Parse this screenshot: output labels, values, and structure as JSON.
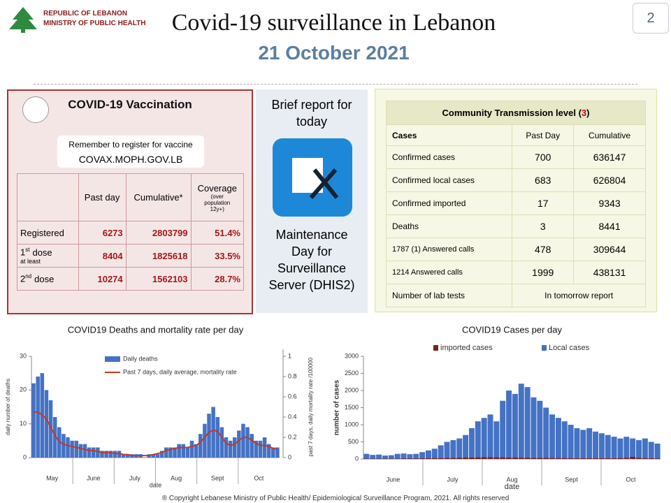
{
  "header": {
    "org_line1": "REPUBLIC OF LEBANON",
    "org_line2": "MINISTRY OF PUBLIC HEALTH",
    "title": "Covid-19 surveillance in Lebanon",
    "date": "21 October 2021",
    "page": "2"
  },
  "vaccination": {
    "title": "COVID-19 Vaccination",
    "reminder": "Remember to register for vaccine",
    "website": "COVAX.MOPH.GOV.LB",
    "columns": [
      "Past day",
      "Cumulative*",
      "Coverage"
    ],
    "coverage_note": "(over population 12y+)",
    "rows": [
      {
        "label": "Registered",
        "values": [
          "6273",
          "2803799",
          "51.4%"
        ]
      },
      {
        "label_num": "1",
        "label_sup": "st",
        "label": "dose",
        "note": "at least",
        "values": [
          "8404",
          "1825618",
          "33.5%"
        ]
      },
      {
        "label_num": "2",
        "label_sup": "nd",
        "label": "dose",
        "values": [
          "10274",
          "1562103",
          "28.7%"
        ]
      }
    ]
  },
  "brief": {
    "heading": "Brief report for today",
    "message": "Maintenance Day for Surveillance Server (DHIS2)"
  },
  "transmission": {
    "title": "Community Transmission level (",
    "level": "3",
    "title_end": ")",
    "columns": [
      "Cases",
      "Past Day",
      "Cumulative"
    ],
    "rows": [
      [
        "Confirmed cases",
        "700",
        "636147"
      ],
      [
        "Confirmed local cases",
        "683",
        "626804"
      ],
      [
        "Confirmed imported",
        "17",
        "9343"
      ],
      [
        "Deaths",
        "3",
        "8441"
      ],
      [
        "1787 (1) Answered calls",
        "478",
        "309644"
      ],
      [
        "1214 Answered calls",
        "1999",
        "438131"
      ]
    ],
    "lab_tests": [
      "Number of lab tests",
      "In tomorrow report"
    ]
  },
  "footer": "® Copyright Lebanese Ministry of Public Health/ Epidemiological Surveillance Program, 2021. All rights reserved",
  "chart_data": [
    {
      "type": "combo",
      "title": "COVID19 Deaths and mortality rate per day",
      "xlabel": "date",
      "ylabel": "daily number of deaths",
      "y2label": "past 7 days, daily mortality rate /100000",
      "months": [
        "May",
        "June",
        "July",
        "Aug",
        "Sept",
        "Oct"
      ],
      "ylim": [
        0,
        30
      ],
      "yticks": [
        0,
        10,
        20,
        30
      ],
      "y2lim": [
        0,
        1
      ],
      "y2ticks": [
        0,
        0.2,
        0.4,
        0.6,
        0.8,
        1
      ],
      "series": [
        {
          "name": "Daily deaths",
          "color": "#4472c4",
          "values": [
            22,
            24,
            25,
            20,
            17,
            12,
            9,
            7,
            6,
            5,
            5,
            4,
            4,
            3,
            3,
            3,
            2,
            2,
            2,
            2,
            2,
            1,
            1,
            1,
            1,
            1,
            0,
            1,
            1,
            1,
            2,
            3,
            3,
            3,
            4,
            4,
            3,
            5,
            4,
            7,
            10,
            13,
            15,
            12,
            9,
            6,
            5,
            6,
            8,
            10,
            9,
            7,
            5,
            5,
            6,
            4,
            3,
            3
          ]
        },
        {
          "name": "Past 7 days, daily average, mortality rate",
          "color": "#c0392b",
          "axis": "y2",
          "values": [
            0.45,
            0.45,
            0.42,
            0.38,
            0.3,
            0.22,
            0.16,
            0.13,
            0.12,
            0.11,
            0.1,
            0.09,
            0.08,
            0.07,
            0.07,
            0.06,
            0.05,
            0.05,
            0.05,
            0.04,
            0.04,
            0.03,
            0.03,
            0.02,
            0.02,
            0.02,
            0.02,
            0.02,
            0.03,
            0.04,
            0.05,
            0.07,
            0.08,
            0.09,
            0.1,
            0.1,
            0.1,
            0.11,
            0.12,
            0.15,
            0.2,
            0.25,
            0.27,
            0.26,
            0.2,
            0.14,
            0.12,
            0.13,
            0.17,
            0.2,
            0.2,
            0.17,
            0.14,
            0.12,
            0.12,
            0.11,
            0.09,
            0.08
          ]
        }
      ]
    },
    {
      "type": "bar",
      "title": "COVID19 Cases per day",
      "xlabel": "date",
      "ylabel": "number of cases",
      "months": [
        "June",
        "July",
        "Aug",
        "Sept",
        "Oct"
      ],
      "ylim": [
        0,
        3000
      ],
      "yticks": [
        0,
        500,
        1000,
        1500,
        2000,
        2500,
        3000
      ],
      "series": [
        {
          "name": "imported cases",
          "color": "#7b1f1f",
          "values": [
            10,
            10,
            10,
            10,
            10,
            10,
            15,
            15,
            15,
            20,
            20,
            25,
            25,
            30,
            30,
            35,
            40,
            40,
            45,
            50,
            50,
            45,
            45,
            40,
            40,
            35,
            35,
            30,
            30,
            30,
            25,
            25,
            25,
            20,
            20,
            20,
            20,
            20,
            20,
            20,
            20,
            25,
            30,
            60,
            30,
            20,
            20,
            15
          ]
        },
        {
          "name": "Local cases",
          "color": "#4472c4",
          "values": [
            150,
            120,
            130,
            100,
            110,
            150,
            160,
            140,
            150,
            200,
            250,
            300,
            400,
            500,
            550,
            600,
            700,
            900,
            1100,
            1200,
            1300,
            1100,
            1700,
            2000,
            1900,
            2200,
            2100,
            1800,
            1700,
            1500,
            1300,
            1200,
            1100,
            1000,
            900,
            850,
            900,
            800,
            750,
            700,
            650,
            600,
            650,
            600,
            550,
            600,
            500,
            450
          ]
        }
      ]
    }
  ]
}
